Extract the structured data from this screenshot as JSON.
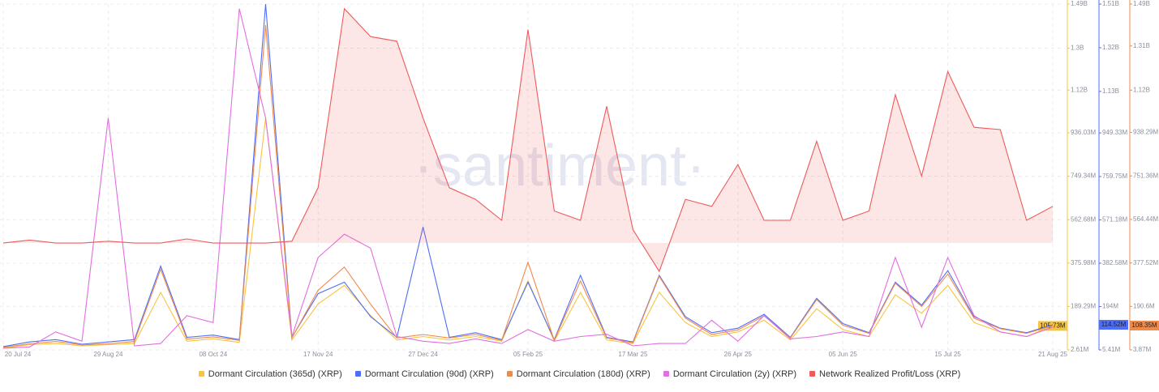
{
  "chart_data": {
    "type": "line",
    "watermark": "·santiment·",
    "categories": [
      "20 Jul 24",
      null,
      null,
      null,
      "29 Aug 24",
      null,
      null,
      null,
      "08 Oct 24",
      null,
      null,
      null,
      "17 Nov 24",
      null,
      null,
      null,
      "27 Dec 24",
      null,
      null,
      null,
      "05 Feb 25",
      null,
      null,
      null,
      "17 Mar 25",
      null,
      null,
      null,
      "26 Apr 25",
      null,
      null,
      null,
      "05 Jun 25",
      null,
      null,
      null,
      "15 Jul 25",
      null,
      null,
      null,
      "21 Aug 25"
    ],
    "ylim": [
      2610000,
      1490000000
    ],
    "yticks": [
      {
        "value": 2610000,
        "label": "2.61M"
      },
      {
        "value": 189290000,
        "label": "189.29M"
      },
      {
        "value": 375980000,
        "label": "375.98M"
      },
      {
        "value": 562680000,
        "label": "562.68M"
      },
      {
        "value": 749340000,
        "label": "749.34M"
      },
      {
        "value": 936030000,
        "label": "936.03M"
      },
      {
        "value": 1120000000,
        "label": "1.12B"
      },
      {
        "value": 1300000000,
        "label": "1.3B"
      },
      {
        "value": 1490000000,
        "label": "1.49B"
      }
    ],
    "y2lim": [
      5410000,
      1510000000
    ],
    "y2ticks": [
      {
        "value": 5410000,
        "label": "5.41M"
      },
      {
        "value": 194000000,
        "label": "194M"
      },
      {
        "value": 382580000,
        "label": "382.58M"
      },
      {
        "value": 571180000,
        "label": "571.18M"
      },
      {
        "value": 759750000,
        "label": "759.75M"
      },
      {
        "value": 949330000,
        "label": "949.33M"
      },
      {
        "value": 1130000000,
        "label": "1.13B"
      },
      {
        "value": 1320000000,
        "label": "1.32B"
      },
      {
        "value": 1510000000,
        "label": "1.51B"
      }
    ],
    "y3lim": [
      3870000,
      1490000000
    ],
    "y3ticks": [
      {
        "value": 3870000,
        "label": "3.87M"
      },
      {
        "value": 190600000,
        "label": "190.6M"
      },
      {
        "value": 377520000,
        "label": "377.52M"
      },
      {
        "value": 564440000,
        "label": "564.44M"
      },
      {
        "value": 751360000,
        "label": "751.36M"
      },
      {
        "value": 938290000,
        "label": "938.29M"
      },
      {
        "value": 1120000000,
        "label": "1.12B"
      },
      {
        "value": 1310000000,
        "label": "1.31B"
      },
      {
        "value": 1490000000,
        "label": "1.49B"
      }
    ],
    "grid": true,
    "series": [
      {
        "name": "Dormant Circulation (365d) (XRP)",
        "color": "#f5c542",
        "axis": "y",
        "last_label": "105.73M",
        "values": [
          10000000.0,
          25000000.0,
          30000000.0,
          20000000.0,
          25000000.0,
          30000000.0,
          250000000.0,
          40000000.0,
          50000000.0,
          35000000.0,
          1000000000.0,
          45000000.0,
          200000000.0,
          280000000.0,
          150000000.0,
          45000000.0,
          60000000.0,
          45000000.0,
          60000000.0,
          40000000.0,
          300000000.0,
          40000000.0,
          250000000.0,
          45000000.0,
          30000000.0,
          250000000.0,
          120000000.0,
          60000000.0,
          80000000.0,
          130000000.0,
          45000000.0,
          180000000.0,
          90000000.0,
          60000000.0,
          240000000.0,
          160000000.0,
          280000000.0,
          120000000.0,
          80000000.0,
          60000000.0,
          105730000.0
        ]
      },
      {
        "name": "Dormant Circulation (90d) (XRP)",
        "color": "#4f6ef7",
        "axis": "y2",
        "last_label": "114.52M",
        "values": [
          20000000.0,
          40000000.0,
          50000000.0,
          30000000.0,
          40000000.0,
          50000000.0,
          370000000.0,
          60000000.0,
          70000000.0,
          50000000.0,
          1510000000.0,
          60000000.0,
          250000000.0,
          300000000.0,
          150000000.0,
          60000000.0,
          540000000.0,
          60000000.0,
          80000000.0,
          50000000.0,
          300000000.0,
          50000000.0,
          330000000.0,
          60000000.0,
          40000000.0,
          330000000.0,
          150000000.0,
          80000000.0,
          100000000.0,
          160000000.0,
          60000000.0,
          230000000.0,
          120000000.0,
          80000000.0,
          300000000.0,
          200000000.0,
          350000000.0,
          150000000.0,
          100000000.0,
          80000000.0,
          114520000.0
        ]
      },
      {
        "name": "Dormant Circulation (180d) (XRP)",
        "color": "#f08a4b",
        "axis": "y3",
        "last_label": "108.35M",
        "values": [
          15000000.0,
          30000000.0,
          40000000.0,
          25000000.0,
          30000000.0,
          40000000.0,
          350000000.0,
          50000000.0,
          60000000.0,
          45000000.0,
          1400000000.0,
          55000000.0,
          260000000.0,
          360000000.0,
          200000000.0,
          55000000.0,
          70000000.0,
          55000000.0,
          70000000.0,
          45000000.0,
          380000000.0,
          45000000.0,
          300000000.0,
          55000000.0,
          35000000.0,
          320000000.0,
          140000000.0,
          70000000.0,
          90000000.0,
          150000000.0,
          55000000.0,
          220000000.0,
          110000000.0,
          75000000.0,
          290000000.0,
          190000000.0,
          330000000.0,
          140000000.0,
          95000000.0,
          75000000.0,
          108350000.0
        ]
      },
      {
        "name": "Dormant Circulation (2y) (XRP)",
        "color": "#e26ee0",
        "axis": "y",
        "values": [
          10000000.0,
          15000000.0,
          80000000.0,
          40000000.0,
          1000000000.0,
          20000000.0,
          30000000.0,
          150000000.0,
          120000000.0,
          1470000000.0,
          1000000000.0,
          60000000.0,
          400000000.0,
          500000000.0,
          440000000.0,
          60000000.0,
          40000000.0,
          30000000.0,
          50000000.0,
          30000000.0,
          90000000.0,
          40000000.0,
          60000000.0,
          70000000.0,
          20000000.0,
          30000000.0,
          30000000.0,
          130000000.0,
          40000000.0,
          150000000.0,
          50000000.0,
          60000000.0,
          80000000.0,
          60000000.0,
          400000000.0,
          100000000.0,
          400000000.0,
          150000000.0,
          80000000.0,
          60000000.0,
          100000000.0
        ]
      },
      {
        "name": "Network Realized Profit/Loss (XRP)",
        "color": "#ef5a5a",
        "axis": "y",
        "values": [
          462000000.0,
          475000000.0,
          462000000.0,
          462000000.0,
          470000000.0,
          462000000.0,
          462000000.0,
          480000000.0,
          462000000.0,
          462000000.0,
          462000000.0,
          470000000.0,
          700000000.0,
          1470000000.0,
          1350000000.0,
          1330000000.0,
          1000000000.0,
          700000000.0,
          650000000.0,
          560000000.0,
          1380000000.0,
          600000000.0,
          560000000.0,
          1050000000.0,
          520000000.0,
          340000000.0,
          650000000.0,
          620000000.0,
          800000000.0,
          560000000.0,
          560000000.0,
          900000000.0,
          560000000.0,
          600000000.0,
          1100000000.0,
          750000000.0,
          1200000000.0,
          960000000.0,
          950000000.0,
          560000000.0,
          620000000.0
        ]
      }
    ]
  }
}
